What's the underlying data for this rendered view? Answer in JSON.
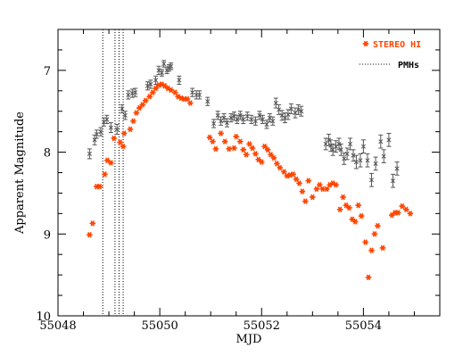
{
  "chart_data": {
    "type": "scatter",
    "xlabel": "MJD",
    "ylabel": "Apparent Magnitude",
    "xlim": [
      55048,
      55055.5
    ],
    "ylim": [
      10,
      6.5
    ],
    "y_inverted": true,
    "x_ticks": [
      55048,
      55050,
      55052,
      55054
    ],
    "x_ticklabels": [
      "55048",
      "55050",
      "55052",
      "55054"
    ],
    "x_minor_step": 0.5,
    "y_ticks": [
      7,
      8,
      9,
      10
    ],
    "y_ticklabels": [
      "7",
      "8",
      "9",
      "10"
    ],
    "y_minor_step": 0.25,
    "grid": false,
    "legend_position": "top-right",
    "legend": [
      {
        "label": "STEREO HI",
        "color": "#ff4500",
        "marker": "asterisk"
      },
      {
        "label": "PMHs",
        "color": "#000000",
        "marker": "dotted-line"
      }
    ],
    "colors": {
      "stereo": "#ff4500",
      "ground": "#555555",
      "pmh": "#000000"
    },
    "pmh_lines": [
      55048.88,
      55049.12,
      55049.2,
      55049.28
    ],
    "series": [
      {
        "name": "STEREO HI",
        "marker": "asterisk",
        "points": [
          [
            55048.62,
            9.01
          ],
          [
            55048.68,
            8.87
          ],
          [
            55048.76,
            8.42
          ],
          [
            55048.82,
            8.42
          ],
          [
            55048.92,
            8.27
          ],
          [
            55048.97,
            8.1
          ],
          [
            55049.04,
            8.13
          ],
          [
            55049.1,
            7.83
          ],
          [
            55049.22,
            7.88
          ],
          [
            55049.28,
            7.93
          ],
          [
            55049.3,
            7.77
          ],
          [
            55049.42,
            7.72
          ],
          [
            55049.48,
            7.62
          ],
          [
            55049.54,
            7.52
          ],
          [
            55049.6,
            7.46
          ],
          [
            55049.66,
            7.42
          ],
          [
            55049.72,
            7.37
          ],
          [
            55049.8,
            7.32
          ],
          [
            55049.86,
            7.27
          ],
          [
            55049.92,
            7.22
          ],
          [
            55049.98,
            7.18
          ],
          [
            55050.04,
            7.17
          ],
          [
            55050.1,
            7.19
          ],
          [
            55050.16,
            7.22
          ],
          [
            55050.22,
            7.24
          ],
          [
            55050.3,
            7.27
          ],
          [
            55050.36,
            7.32
          ],
          [
            55050.42,
            7.34
          ],
          [
            55050.48,
            7.35
          ],
          [
            55050.54,
            7.35
          ],
          [
            55050.6,
            7.4
          ],
          [
            55050.98,
            7.82
          ],
          [
            55051.04,
            7.87
          ],
          [
            55051.1,
            7.96
          ],
          [
            55051.2,
            7.77
          ],
          [
            55051.28,
            7.87
          ],
          [
            55051.36,
            7.96
          ],
          [
            55051.46,
            7.95
          ],
          [
            55051.5,
            7.81
          ],
          [
            55051.58,
            7.87
          ],
          [
            55051.64,
            7.97
          ],
          [
            55051.7,
            8.03
          ],
          [
            55051.76,
            7.9
          ],
          [
            55051.82,
            7.95
          ],
          [
            55051.88,
            8.02
          ],
          [
            55051.94,
            8.09
          ],
          [
            55052.0,
            8.12
          ],
          [
            55052.06,
            7.93
          ],
          [
            55052.12,
            7.97
          ],
          [
            55052.18,
            8.03
          ],
          [
            55052.24,
            8.07
          ],
          [
            55052.3,
            8.14
          ],
          [
            55052.36,
            8.19
          ],
          [
            55052.44,
            8.24
          ],
          [
            55052.5,
            8.29
          ],
          [
            55052.56,
            8.28
          ],
          [
            55052.62,
            8.27
          ],
          [
            55052.68,
            8.33
          ],
          [
            55052.74,
            8.38
          ],
          [
            55052.8,
            8.48
          ],
          [
            55052.86,
            8.6
          ],
          [
            55052.92,
            8.35
          ],
          [
            55053.0,
            8.55
          ],
          [
            55053.08,
            8.45
          ],
          [
            55053.14,
            8.4
          ],
          [
            55053.2,
            8.45
          ],
          [
            55053.28,
            8.45
          ],
          [
            55053.34,
            8.4
          ],
          [
            55053.4,
            8.38
          ],
          [
            55053.46,
            8.4
          ],
          [
            55053.54,
            8.7
          ],
          [
            55053.6,
            8.55
          ],
          [
            55053.66,
            8.65
          ],
          [
            55053.72,
            8.68
          ],
          [
            55053.78,
            8.82
          ],
          [
            55053.84,
            8.85
          ],
          [
            55053.9,
            8.65
          ],
          [
            55053.96,
            8.78
          ],
          [
            55054.04,
            9.1
          ],
          [
            55054.1,
            9.53
          ],
          [
            55054.16,
            9.2
          ],
          [
            55054.22,
            9.0
          ],
          [
            55054.28,
            8.9
          ],
          [
            55054.38,
            9.17
          ],
          [
            55054.56,
            8.77
          ],
          [
            55054.62,
            8.74
          ],
          [
            55054.68,
            8.74
          ],
          [
            55054.76,
            8.66
          ],
          [
            55054.84,
            8.7
          ],
          [
            55054.92,
            8.75
          ]
        ]
      },
      {
        "name": "",
        "marker": "errorbar",
        "points": [
          [
            55048.62,
            8.02,
            0.06
          ],
          [
            55048.72,
            7.85,
            0.06
          ],
          [
            55048.76,
            7.78,
            0.05
          ],
          [
            55048.84,
            7.75,
            0.05
          ],
          [
            55048.9,
            7.63,
            0.05
          ],
          [
            55048.96,
            7.6,
            0.05
          ],
          [
            55049.04,
            7.7,
            0.06
          ],
          [
            55049.16,
            7.72,
            0.06
          ],
          [
            55049.26,
            7.47,
            0.05
          ],
          [
            55049.32,
            7.55,
            0.05
          ],
          [
            55049.38,
            7.3,
            0.05
          ],
          [
            55049.46,
            7.28,
            0.05
          ],
          [
            55049.52,
            7.27,
            0.05
          ],
          [
            55049.76,
            7.19,
            0.05
          ],
          [
            55049.82,
            7.17,
            0.05
          ],
          [
            55049.92,
            7.12,
            0.05
          ],
          [
            55049.98,
            7.0,
            0.05
          ],
          [
            55050.04,
            7.03,
            0.04
          ],
          [
            55050.08,
            6.92,
            0.04
          ],
          [
            55050.14,
            7.0,
            0.04
          ],
          [
            55050.18,
            6.97,
            0.04
          ],
          [
            55050.22,
            6.95,
            0.04
          ],
          [
            55050.38,
            7.12,
            0.05
          ],
          [
            55050.64,
            7.27,
            0.05
          ],
          [
            55050.72,
            7.3,
            0.05
          ],
          [
            55050.78,
            7.3,
            0.05
          ],
          [
            55050.94,
            7.38,
            0.05
          ],
          [
            55051.06,
            7.65,
            0.05
          ],
          [
            55051.14,
            7.55,
            0.05
          ],
          [
            55051.2,
            7.62,
            0.05
          ],
          [
            55051.26,
            7.58,
            0.05
          ],
          [
            55051.32,
            7.64,
            0.05
          ],
          [
            55051.4,
            7.58,
            0.05
          ],
          [
            55051.46,
            7.56,
            0.05
          ],
          [
            55051.52,
            7.6,
            0.05
          ],
          [
            55051.58,
            7.55,
            0.05
          ],
          [
            55051.64,
            7.6,
            0.05
          ],
          [
            55051.72,
            7.56,
            0.05
          ],
          [
            55051.8,
            7.6,
            0.05
          ],
          [
            55051.88,
            7.62,
            0.05
          ],
          [
            55051.96,
            7.55,
            0.05
          ],
          [
            55052.02,
            7.6,
            0.05
          ],
          [
            55052.1,
            7.66,
            0.05
          ],
          [
            55052.16,
            7.58,
            0.05
          ],
          [
            55052.22,
            7.62,
            0.05
          ],
          [
            55052.28,
            7.4,
            0.06
          ],
          [
            55052.34,
            7.48,
            0.06
          ],
          [
            55052.4,
            7.55,
            0.06
          ],
          [
            55052.46,
            7.58,
            0.06
          ],
          [
            55052.52,
            7.54,
            0.06
          ],
          [
            55052.58,
            7.47,
            0.06
          ],
          [
            55052.66,
            7.52,
            0.06
          ],
          [
            55052.72,
            7.48,
            0.06
          ],
          [
            55052.78,
            7.5,
            0.06
          ],
          [
            55053.26,
            7.9,
            0.07
          ],
          [
            55053.32,
            7.85,
            0.07
          ],
          [
            55053.36,
            7.92,
            0.07
          ],
          [
            55053.4,
            7.97,
            0.07
          ],
          [
            55053.46,
            7.93,
            0.07
          ],
          [
            55053.52,
            7.9,
            0.07
          ],
          [
            55053.56,
            7.97,
            0.07
          ],
          [
            55053.62,
            8.08,
            0.07
          ],
          [
            55053.68,
            8.02,
            0.07
          ],
          [
            55053.74,
            7.9,
            0.07
          ],
          [
            55053.8,
            8.04,
            0.07
          ],
          [
            55053.86,
            8.12,
            0.08
          ],
          [
            55053.94,
            8.1,
            0.08
          ],
          [
            55054.0,
            7.93,
            0.08
          ],
          [
            55054.08,
            8.1,
            0.08
          ],
          [
            55054.16,
            8.34,
            0.08
          ],
          [
            55054.24,
            8.14,
            0.08
          ],
          [
            55054.34,
            7.87,
            0.08
          ],
          [
            55054.4,
            8.05,
            0.08
          ],
          [
            55054.5,
            7.85,
            0.08
          ],
          [
            55054.58,
            8.35,
            0.08
          ],
          [
            55054.66,
            8.2,
            0.08
          ]
        ]
      }
    ]
  }
}
